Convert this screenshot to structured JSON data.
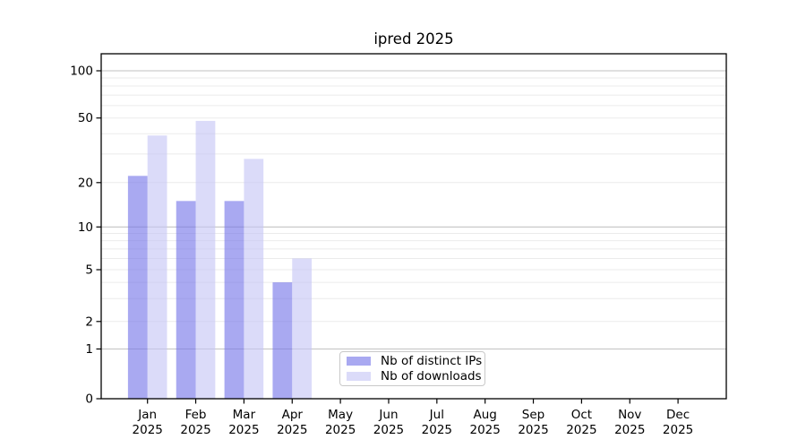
{
  "title": "ipred 2025",
  "legend": {
    "items": [
      {
        "label": "Nb of distinct IPs",
        "color": "rgba(116,116,232,0.62)"
      },
      {
        "label": "Nb of downloads",
        "color": "rgba(197,197,245,0.62)"
      }
    ],
    "position": "lower-center"
  },
  "colors": {
    "distinct_ips_bar": "rgba(116,116,232,0.62)",
    "downloads_bar": "rgba(197,197,245,0.62)",
    "major_gridline": "#c2c2c2",
    "minor_gridline": "#ebebeb",
    "axis": "#000000"
  },
  "chart_data": {
    "type": "bar",
    "title": "ipred 2025",
    "categories": [
      "Jan",
      "Feb",
      "Mar",
      "Apr",
      "May",
      "Jun",
      "Jul",
      "Aug",
      "Sep",
      "Oct",
      "Nov",
      "Dec"
    ],
    "x_tick_second_line": "2025",
    "series": [
      {
        "name": "Nb of distinct IPs",
        "values": [
          22,
          15,
          15,
          4,
          0,
          0,
          0,
          0,
          0,
          0,
          0,
          0
        ]
      },
      {
        "name": "Nb of downloads",
        "values": [
          39,
          48,
          28,
          6,
          0,
          0,
          0,
          0,
          0,
          0,
          0,
          0
        ]
      }
    ],
    "y_ticks": [
      0,
      1,
      2,
      5,
      10,
      20,
      50,
      100
    ],
    "y_minor_gridlines": [
      2,
      3,
      4,
      5,
      6,
      7,
      8,
      9,
      20,
      30,
      40,
      50,
      60,
      70,
      80,
      90
    ],
    "y_major_gridlines": [
      1,
      10,
      100
    ],
    "y_scale": "log-above-1 with linear 0-1 baseline segment",
    "ylim": [
      0,
      128
    ],
    "xlabel": "",
    "ylabel": "",
    "grid": "horizontal",
    "legend_position": "lower center"
  }
}
